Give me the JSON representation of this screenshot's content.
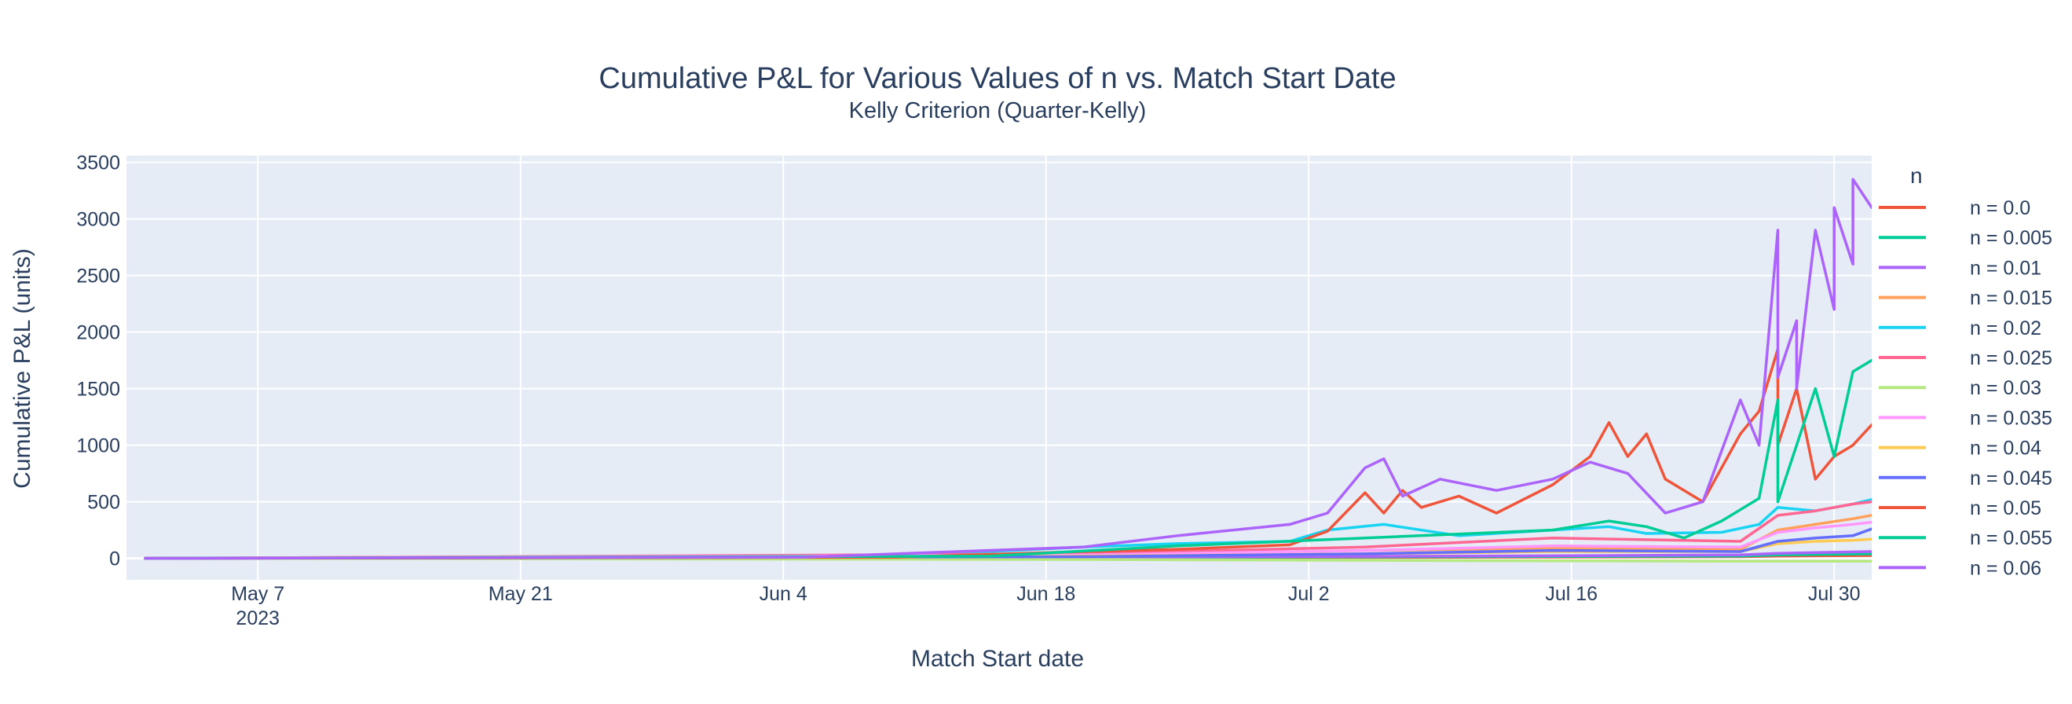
{
  "chart_data": {
    "type": "line",
    "title": "Cumulative P&L for Various Values of n vs. Match Start Date",
    "subtitle": "Kelly Criterion (Quarter-Kelly)",
    "xlabel": "Match Start date",
    "ylabel": "Cumulative P&L (units)",
    "legend_title": "n",
    "legend_position": "right",
    "grid": true,
    "xlim": [
      "2023-04-30",
      "2023-08-01"
    ],
    "ylim": [
      -190,
      3560
    ],
    "x_ticks": [
      {
        "date": "2023-05-07",
        "label": "May 7",
        "sublabel": "2023"
      },
      {
        "date": "2023-05-21",
        "label": "May 21",
        "sublabel": ""
      },
      {
        "date": "2023-06-04",
        "label": "Jun 4",
        "sublabel": ""
      },
      {
        "date": "2023-06-18",
        "label": "Jun 18",
        "sublabel": ""
      },
      {
        "date": "2023-07-02",
        "label": "Jul 2",
        "sublabel": ""
      },
      {
        "date": "2023-07-16",
        "label": "Jul 16",
        "sublabel": ""
      },
      {
        "date": "2023-07-30",
        "label": "Jul 30",
        "sublabel": ""
      }
    ],
    "y_ticks": [
      0,
      500,
      1000,
      1500,
      2000,
      2500,
      3000,
      3500
    ],
    "series": [
      {
        "name": "n = 0.0",
        "color": "#EF553B",
        "x": [
          "2023-05-01",
          "2023-06-20",
          "2023-07-10",
          "2023-07-25",
          "2023-07-27",
          "2023-08-01"
        ],
        "y": [
          0,
          5,
          10,
          15,
          20,
          25
        ]
      },
      {
        "name": "n = 0.005",
        "color": "#00CC96",
        "x": [
          "2023-05-01",
          "2023-06-20",
          "2023-07-10",
          "2023-07-25",
          "2023-07-27",
          "2023-08-01"
        ],
        "y": [
          0,
          8,
          15,
          20,
          30,
          40
        ]
      },
      {
        "name": "n = 0.01",
        "color": "#AB63FA",
        "x": [
          "2023-05-01",
          "2023-06-20",
          "2023-07-10",
          "2023-07-25",
          "2023-07-27",
          "2023-08-01"
        ],
        "y": [
          0,
          10,
          20,
          30,
          45,
          60
        ]
      },
      {
        "name": "n = 0.015",
        "color": "#FFA15A",
        "x": [
          "2023-05-01",
          "2023-06-15",
          "2023-06-25",
          "2023-07-05",
          "2023-07-15",
          "2023-07-25",
          "2023-07-27",
          "2023-07-29",
          "2023-07-31",
          "2023-08-01"
        ],
        "y": [
          0,
          10,
          40,
          70,
          90,
          80,
          250,
          300,
          350,
          380
        ]
      },
      {
        "name": "n = 0.02",
        "color": "#19D3F3",
        "x": [
          "2023-05-01",
          "2023-06-10",
          "2023-06-20",
          "2023-06-25",
          "2023-07-01",
          "2023-07-03",
          "2023-07-06",
          "2023-07-10",
          "2023-07-15",
          "2023-07-18",
          "2023-07-20",
          "2023-07-24",
          "2023-07-26",
          "2023-07-27",
          "2023-07-29",
          "2023-07-31",
          "2023-08-01"
        ],
        "y": [
          0,
          20,
          100,
          130,
          150,
          250,
          300,
          200,
          250,
          280,
          220,
          230,
          300,
          450,
          420,
          480,
          520
        ]
      },
      {
        "name": "n = 0.025",
        "color": "#FF6692",
        "x": [
          "2023-05-01",
          "2023-06-20",
          "2023-07-05",
          "2023-07-15",
          "2023-07-25",
          "2023-07-27",
          "2023-07-29",
          "2023-07-31",
          "2023-08-01"
        ],
        "y": [
          0,
          40,
          100,
          180,
          150,
          380,
          420,
          480,
          500
        ]
      },
      {
        "name": "n = 0.03",
        "color": "#B6E880",
        "x": [
          "2023-05-01",
          "2023-06-20",
          "2023-07-10",
          "2023-07-25",
          "2023-07-27",
          "2023-08-01"
        ],
        "y": [
          0,
          -10,
          -20,
          -25,
          -25,
          -25
        ]
      },
      {
        "name": "n = 0.035",
        "color": "#FF97FF",
        "x": [
          "2023-05-01",
          "2023-06-20",
          "2023-07-05",
          "2023-07-15",
          "2023-07-25",
          "2023-07-27",
          "2023-07-29",
          "2023-07-31",
          "2023-08-01"
        ],
        "y": [
          0,
          30,
          70,
          110,
          100,
          230,
          270,
          300,
          320
        ]
      },
      {
        "name": "n = 0.04",
        "color": "#FECB52",
        "x": [
          "2023-05-01",
          "2023-06-20",
          "2023-07-05",
          "2023-07-15",
          "2023-07-25",
          "2023-07-27",
          "2023-07-29",
          "2023-07-31",
          "2023-08-01"
        ],
        "y": [
          0,
          20,
          40,
          60,
          60,
          130,
          150,
          160,
          170
        ]
      },
      {
        "name": "n = 0.045",
        "color": "#636EFA",
        "x": [
          "2023-05-01",
          "2023-06-20",
          "2023-07-05",
          "2023-07-15",
          "2023-07-25",
          "2023-07-27",
          "2023-07-29",
          "2023-07-31",
          "2023-08-01"
        ],
        "y": [
          0,
          15,
          40,
          70,
          60,
          150,
          180,
          200,
          260
        ]
      },
      {
        "name": "n = 0.05",
        "color": "#EF553B",
        "x": [
          "2023-05-01",
          "2023-06-10",
          "2023-06-20",
          "2023-06-25",
          "2023-07-01",
          "2023-07-03",
          "2023-07-05",
          "2023-07-06",
          "2023-07-07",
          "2023-07-08",
          "2023-07-10",
          "2023-07-12",
          "2023-07-15",
          "2023-07-17",
          "2023-07-18",
          "2023-07-19",
          "2023-07-20",
          "2023-07-21",
          "2023-07-23",
          "2023-07-24",
          "2023-07-25",
          "2023-07-26",
          "2023-07-27",
          "2023-07-27",
          "2023-07-28",
          "2023-07-29",
          "2023-07-30",
          "2023-07-31",
          "2023-08-01"
        ],
        "y": [
          0,
          10,
          60,
          80,
          120,
          240,
          580,
          400,
          600,
          450,
          550,
          400,
          650,
          900,
          1200,
          900,
          1100,
          700,
          500,
          800,
          1100,
          1300,
          1850,
          1000,
          1500,
          700,
          900,
          1000,
          1180
        ]
      },
      {
        "name": "n = 0.055",
        "color": "#00CC96",
        "x": [
          "2023-05-01",
          "2023-06-15",
          "2023-06-25",
          "2023-07-05",
          "2023-07-15",
          "2023-07-18",
          "2023-07-20",
          "2023-07-22",
          "2023-07-24",
          "2023-07-26",
          "2023-07-27",
          "2023-07-27",
          "2023-07-28",
          "2023-07-29",
          "2023-07-30",
          "2023-07-31",
          "2023-08-01"
        ],
        "y": [
          0,
          20,
          110,
          180,
          250,
          330,
          280,
          180,
          330,
          530,
          1400,
          500,
          1000,
          1500,
          900,
          1650,
          1750
        ]
      },
      {
        "name": "n = 0.06",
        "color": "#AB63FA",
        "x": [
          "2023-05-01",
          "2023-06-05",
          "2023-06-20",
          "2023-06-25",
          "2023-07-01",
          "2023-07-03",
          "2023-07-05",
          "2023-07-06",
          "2023-07-07",
          "2023-07-09",
          "2023-07-12",
          "2023-07-15",
          "2023-07-17",
          "2023-07-19",
          "2023-07-21",
          "2023-07-23",
          "2023-07-25",
          "2023-07-26",
          "2023-07-27",
          "2023-07-27",
          "2023-07-28",
          "2023-07-28",
          "2023-07-29",
          "2023-07-30",
          "2023-07-30",
          "2023-07-31",
          "2023-07-31",
          "2023-08-01"
        ],
        "y": [
          0,
          10,
          100,
          200,
          300,
          400,
          800,
          880,
          550,
          700,
          600,
          700,
          850,
          750,
          400,
          500,
          1400,
          1000,
          2900,
          1600,
          2100,
          1500,
          2900,
          2200,
          3100,
          2600,
          3350,
          3100
        ]
      }
    ]
  }
}
